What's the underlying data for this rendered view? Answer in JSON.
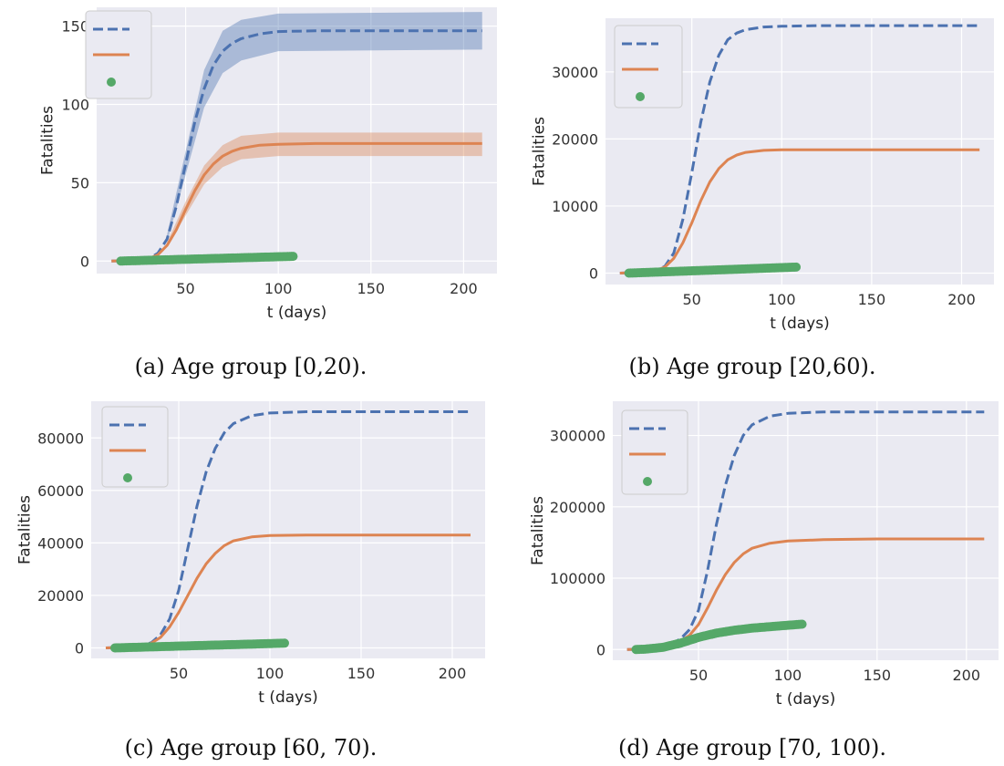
{
  "chart_data": [
    {
      "type": "line",
      "caption": "(a) Age group [0,20).",
      "xlabel": "t (days)",
      "ylabel": "Fatalities",
      "xlim": [
        2,
        218
      ],
      "ylim": [
        -8,
        162
      ],
      "xticks": [
        50,
        100,
        150,
        200
      ],
      "yticks": [
        0,
        50,
        100,
        150
      ],
      "ytick_labels": [
        "0",
        "50",
        "100",
        "150"
      ],
      "grid": true,
      "legend": "top-left",
      "series": [
        {
          "style": "dashed",
          "color": "#4c72b0",
          "values_at": {
            "x": [
              10,
              20,
              30,
              35,
              40,
              45,
              50,
              55,
              60,
              65,
              70,
              75,
              80,
              90,
              100,
              120,
              150,
              180,
              210
            ],
            "y": [
              0,
              0.3,
              1.5,
              5,
              14,
              35,
              62,
              89,
              110,
              125,
              134,
              139,
              142,
              145,
              146.5,
              147,
              147,
              147,
              147
            ]
          },
          "band": [
            {
              "x": 40,
              "lo": 12,
              "hi": 17
            },
            {
              "x": 50,
              "lo": 55,
              "hi": 70
            },
            {
              "x": 60,
              "lo": 98,
              "hi": 122
            },
            {
              "x": 70,
              "lo": 120,
              "hi": 147
            },
            {
              "x": 80,
              "lo": 128,
              "hi": 154
            },
            {
              "x": 100,
              "lo": 134,
              "hi": 158
            },
            {
              "x": 210,
              "lo": 135,
              "hi": 159
            }
          ]
        },
        {
          "style": "solid",
          "color": "#dd8452",
          "values_at": {
            "x": [
              10,
              20,
              30,
              35,
              40,
              45,
              50,
              55,
              60,
              65,
              70,
              75,
              80,
              90,
              100,
              120,
              150,
              180,
              210
            ],
            "y": [
              0,
              0.3,
              1.5,
              4,
              10,
              20,
              33,
              45,
              55,
              62,
              67,
              70,
              72,
              74,
              74.5,
              75,
              75,
              75,
              75
            ]
          },
          "band": [
            {
              "x": 40,
              "lo": 9,
              "hi": 12
            },
            {
              "x": 50,
              "lo": 29,
              "hi": 38
            },
            {
              "x": 60,
              "lo": 49,
              "hi": 61
            },
            {
              "x": 70,
              "lo": 60,
              "hi": 74
            },
            {
              "x": 80,
              "lo": 65,
              "hi": 80
            },
            {
              "x": 100,
              "lo": 67,
              "hi": 82
            },
            {
              "x": 210,
              "lo": 67,
              "hi": 82
            }
          ]
        },
        {
          "style": "points",
          "color": "#55a868",
          "x_range": [
            15,
            108
          ],
          "y_range": [
            0,
            3
          ]
        }
      ]
    },
    {
      "type": "line",
      "caption": "(b) Age group [20,60).",
      "xlabel": "t (days)",
      "ylabel": "Fatalities",
      "xlim": [
        2,
        218
      ],
      "ylim": [
        -1700,
        38000
      ],
      "xticks": [
        50,
        100,
        150,
        200
      ],
      "yticks": [
        0,
        10000,
        20000,
        30000
      ],
      "ytick_labels": [
        "0",
        "10000",
        "20000",
        "30000"
      ],
      "grid": true,
      "legend": "top-left",
      "series": [
        {
          "style": "dashed",
          "color": "#4c72b0",
          "values_at": {
            "x": [
              10,
              20,
              30,
              35,
              40,
              45,
              50,
              55,
              60,
              65,
              70,
              75,
              80,
              90,
              100,
              120,
              150,
              180,
              210
            ],
            "y": [
              0,
              100,
              400,
              1000,
              3000,
              8000,
              15000,
              22500,
              28500,
              32500,
              34800,
              35800,
              36300,
              36700,
              36800,
              36900,
              36900,
              36900,
              36900
            ]
          }
        },
        {
          "style": "solid",
          "color": "#dd8452",
          "values_at": {
            "x": [
              10,
              20,
              30,
              35,
              40,
              45,
              50,
              55,
              60,
              65,
              70,
              75,
              80,
              90,
              100,
              120,
              150,
              180,
              210
            ],
            "y": [
              0,
              100,
              400,
              900,
              2200,
              4500,
              7500,
              10800,
              13600,
              15600,
              16900,
              17600,
              18000,
              18300,
              18400,
              18400,
              18400,
              18400,
              18400
            ]
          }
        },
        {
          "style": "points",
          "color": "#55a868",
          "x_range": [
            15,
            108
          ],
          "y_range": [
            0,
            900
          ]
        }
      ]
    },
    {
      "type": "line",
      "caption": "(c) Age group [60, 70).",
      "xlabel": "t (days)",
      "ylabel": "Fatalities",
      "xlim": [
        2,
        218
      ],
      "ylim": [
        -4000,
        94000
      ],
      "xticks": [
        50,
        100,
        150,
        200
      ],
      "yticks": [
        0,
        20000,
        40000,
        60000,
        80000
      ],
      "ytick_labels": [
        "0",
        "20000",
        "40000",
        "60000",
        "80000"
      ],
      "grid": true,
      "legend": "top-left",
      "series": [
        {
          "style": "dashed",
          "color": "#4c72b0",
          "values_at": {
            "x": [
              10,
              20,
              30,
              35,
              40,
              45,
              50,
              55,
              60,
              65,
              70,
              75,
              80,
              90,
              100,
              120,
              150,
              180,
              210
            ],
            "y": [
              0,
              200,
              800,
              2000,
              5000,
              11000,
              22000,
              38000,
              54000,
              67000,
              76000,
              82000,
              85500,
              88500,
              89500,
              90000,
              90000,
              90000,
              90000
            ]
          }
        },
        {
          "style": "solid",
          "color": "#dd8452",
          "values_at": {
            "x": [
              10,
              20,
              30,
              35,
              40,
              45,
              50,
              55,
              60,
              65,
              70,
              75,
              80,
              90,
              100,
              120,
              150,
              180,
              210
            ],
            "y": [
              0,
              200,
              800,
              1800,
              4000,
              8000,
              13500,
              20000,
              26500,
              32000,
              36000,
              39000,
              40800,
              42300,
              42800,
              43000,
              43000,
              43000,
              43000
            ]
          }
        },
        {
          "style": "points",
          "color": "#55a868",
          "x_range": [
            15,
            108
          ],
          "y_range": [
            0,
            1800
          ]
        }
      ]
    },
    {
      "type": "line",
      "caption": "(d) Age group [70, 100).",
      "xlabel": "t (days)",
      "ylabel": "Fatalities",
      "xlim": [
        2,
        218
      ],
      "ylim": [
        -15000,
        348000
      ],
      "xticks": [
        50,
        100,
        150,
        200
      ],
      "yticks": [
        0,
        100000,
        200000,
        300000
      ],
      "ytick_labels": [
        "0",
        "100000",
        "200000",
        "300000"
      ],
      "grid": true,
      "legend": "top-left",
      "series": [
        {
          "style": "dashed",
          "color": "#4c72b0",
          "values_at": {
            "x": [
              10,
              20,
              30,
              35,
              40,
              45,
              50,
              55,
              60,
              65,
              70,
              75,
              80,
              90,
              100,
              120,
              150,
              180,
              210
            ],
            "y": [
              0,
              500,
              3000,
              8000,
              15000,
              28000,
              55000,
              110000,
              175000,
              230000,
              272000,
              300000,
              315000,
              327000,
              331000,
              333000,
              333000,
              333000,
              333000
            ]
          }
        },
        {
          "style": "solid",
          "color": "#dd8452",
          "values_at": {
            "x": [
              10,
              20,
              30,
              35,
              40,
              45,
              50,
              55,
              60,
              65,
              70,
              75,
              80,
              90,
              100,
              120,
              150,
              180,
              210
            ],
            "y": [
              0,
              500,
              3000,
              7000,
              12000,
              20000,
              35000,
              58000,
              83000,
              105000,
              122000,
              134000,
              142000,
              149000,
              152000,
              154000,
              155000,
              155000,
              155000
            ]
          }
        },
        {
          "style": "points",
          "color": "#55a868",
          "values_at": {
            "x": [
              15,
              20,
              30,
              40,
              50,
              60,
              70,
              80,
              90,
              100,
              108
            ],
            "y": [
              0,
              500,
              3000,
              9000,
              17000,
              23000,
              27000,
              30000,
              32000,
              34000,
              35500
            ]
          }
        }
      ]
    }
  ]
}
